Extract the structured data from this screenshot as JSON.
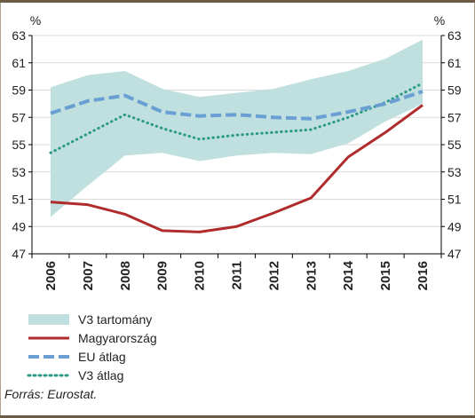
{
  "chart_data": {
    "type": "line",
    "unit_label_left": "%",
    "unit_label_right": "%",
    "x": [
      "2006",
      "2007",
      "2008",
      "2009",
      "2010",
      "2011",
      "2012",
      "2013",
      "2014",
      "2015",
      "2016"
    ],
    "ylim": [
      47,
      63
    ],
    "yticks": [
      47,
      49,
      51,
      53,
      55,
      57,
      59,
      61,
      63
    ],
    "grid": true,
    "legend_position": "bottom-left",
    "band": {
      "name": "V3 tartomány",
      "color": "#bfe0de",
      "lower": [
        49.7,
        52.0,
        54.2,
        54.4,
        53.8,
        54.2,
        54.4,
        54.3,
        55.1,
        56.7,
        58.0
      ],
      "upper": [
        59.2,
        60.1,
        60.4,
        59.1,
        58.5,
        58.8,
        59.1,
        59.8,
        60.4,
        61.3,
        62.7
      ]
    },
    "series": [
      {
        "name": "Magyarország",
        "color": "#b02b2b",
        "style": "solid",
        "values": [
          50.8,
          50.6,
          49.9,
          48.7,
          48.6,
          49.0,
          50.0,
          51.1,
          54.1,
          55.9,
          57.9
        ]
      },
      {
        "name": "EU átlag",
        "color": "#6a9fd4",
        "style": "dashed",
        "values": [
          57.3,
          58.2,
          58.6,
          57.4,
          57.1,
          57.2,
          57.0,
          56.9,
          57.4,
          58.0,
          58.9
        ]
      },
      {
        "name": "V3 átlag",
        "color": "#2a9a87",
        "style": "dotted",
        "values": [
          54.4,
          55.8,
          57.2,
          56.2,
          55.4,
          55.7,
          55.9,
          56.1,
          57.0,
          58.1,
          59.5
        ]
      }
    ]
  },
  "source": "Forrás: Eurostat."
}
